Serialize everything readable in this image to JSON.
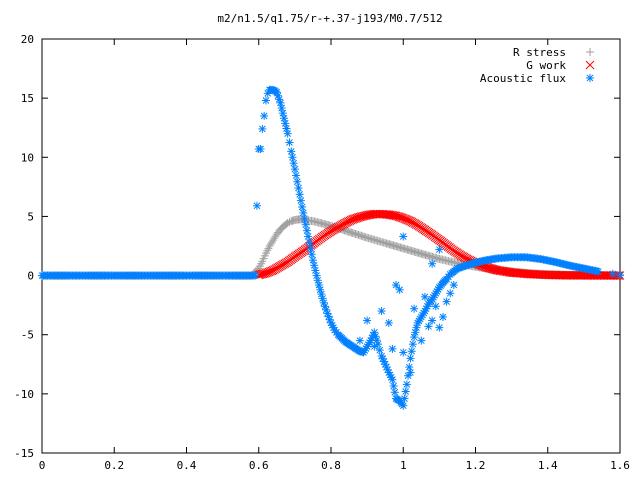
{
  "chart_data": {
    "type": "scatter",
    "title": "m2/n1.5/q1.75/r-+.37-j193/M0.7/512",
    "xlabel": "",
    "ylabel": "",
    "xlim": [
      0,
      1.6
    ],
    "ylim": [
      -15,
      20
    ],
    "x_ticks": [
      0,
      0.2,
      0.4,
      0.6,
      0.8,
      1,
      1.2,
      1.4,
      1.6
    ],
    "x_tick_labels": [
      "0",
      "0.2",
      "0.4",
      "0.6",
      "0.8",
      "1",
      "1.2",
      "1.4",
      "1.6"
    ],
    "y_ticks": [
      -15,
      -10,
      -5,
      0,
      5,
      10,
      15,
      20
    ],
    "y_tick_labels": [
      "-15",
      "-10",
      "-5",
      "0",
      "5",
      "10",
      "15",
      "20"
    ],
    "grid": false,
    "legend_position": "top-right",
    "series": [
      {
        "name": "R stress",
        "marker": "plus",
        "color": "#a0a0a0",
        "points": [
          [
            0.0,
            0
          ],
          [
            0.1,
            0
          ],
          [
            0.2,
            0
          ],
          [
            0.3,
            0
          ],
          [
            0.4,
            0
          ],
          [
            0.5,
            0
          ],
          [
            0.58,
            0
          ],
          [
            0.6,
            0.6
          ],
          [
            0.61,
            1.2
          ],
          [
            0.62,
            1.9
          ],
          [
            0.63,
            2.5
          ],
          [
            0.64,
            3.0
          ],
          [
            0.65,
            3.5
          ],
          [
            0.66,
            3.9
          ],
          [
            0.67,
            4.2
          ],
          [
            0.68,
            4.45
          ],
          [
            0.69,
            4.6
          ],
          [
            0.7,
            4.7
          ],
          [
            0.71,
            4.75
          ],
          [
            0.72,
            4.75
          ],
          [
            0.73,
            4.7
          ],
          [
            0.75,
            4.6
          ],
          [
            0.77,
            4.45
          ],
          [
            0.8,
            4.2
          ],
          [
            0.83,
            3.9
          ],
          [
            0.86,
            3.6
          ],
          [
            0.9,
            3.2
          ],
          [
            0.95,
            2.75
          ],
          [
            1.0,
            2.3
          ],
          [
            1.05,
            1.85
          ],
          [
            1.1,
            1.4
          ],
          [
            1.15,
            1.05
          ],
          [
            1.2,
            0.75
          ],
          [
            1.25,
            0.5
          ],
          [
            1.3,
            0.35
          ],
          [
            1.35,
            0.2
          ],
          [
            1.4,
            0.12
          ],
          [
            1.45,
            0.07
          ],
          [
            1.5,
            0.04
          ],
          [
            1.55,
            0.02
          ],
          [
            1.6,
            0.0
          ]
        ]
      },
      {
        "name": "G work",
        "marker": "cross",
        "color": "#ff0000",
        "points": [
          [
            0.6,
            0.05
          ],
          [
            0.62,
            0.2
          ],
          [
            0.64,
            0.45
          ],
          [
            0.66,
            0.8
          ],
          [
            0.68,
            1.15
          ],
          [
            0.7,
            1.6
          ],
          [
            0.72,
            2.0
          ],
          [
            0.74,
            2.45
          ],
          [
            0.76,
            2.9
          ],
          [
            0.78,
            3.35
          ],
          [
            0.8,
            3.75
          ],
          [
            0.82,
            4.1
          ],
          [
            0.84,
            4.45
          ],
          [
            0.86,
            4.75
          ],
          [
            0.88,
            4.95
          ],
          [
            0.9,
            5.1
          ],
          [
            0.92,
            5.2
          ],
          [
            0.94,
            5.2
          ],
          [
            0.96,
            5.15
          ],
          [
            0.98,
            5.05
          ],
          [
            1.0,
            4.85
          ],
          [
            1.02,
            4.6
          ],
          [
            1.04,
            4.25
          ],
          [
            1.06,
            3.85
          ],
          [
            1.08,
            3.45
          ],
          [
            1.1,
            3.0
          ],
          [
            1.12,
            2.55
          ],
          [
            1.14,
            2.1
          ],
          [
            1.16,
            1.7
          ],
          [
            1.18,
            1.35
          ],
          [
            1.2,
            1.05
          ],
          [
            1.23,
            0.7
          ],
          [
            1.26,
            0.45
          ],
          [
            1.3,
            0.25
          ],
          [
            1.35,
            0.12
          ],
          [
            1.4,
            0.05
          ],
          [
            1.45,
            0.02
          ],
          [
            1.5,
            0.01
          ],
          [
            1.6,
            0.0
          ]
        ]
      },
      {
        "name": "Acoustic flux",
        "marker": "star",
        "color": "#0080ff",
        "points": [
          [
            0.0,
            0
          ],
          [
            0.05,
            0
          ],
          [
            0.1,
            0
          ],
          [
            0.15,
            0
          ],
          [
            0.2,
            0
          ],
          [
            0.25,
            0
          ],
          [
            0.3,
            0
          ],
          [
            0.35,
            0
          ],
          [
            0.4,
            0
          ],
          [
            0.45,
            0
          ],
          [
            0.5,
            0
          ],
          [
            0.55,
            0
          ],
          [
            0.59,
            0
          ],
          [
            0.595,
            5.9
          ],
          [
            0.6,
            10.7
          ],
          [
            0.605,
            10.7
          ],
          [
            0.61,
            12.4
          ],
          [
            0.615,
            13.5
          ],
          [
            0.62,
            14.8
          ],
          [
            0.625,
            15.4
          ],
          [
            0.63,
            15.7
          ],
          [
            0.64,
            15.7
          ],
          [
            0.65,
            15.5
          ],
          [
            0.66,
            14.6
          ],
          [
            0.67,
            13.3
          ],
          [
            0.68,
            12.0
          ],
          [
            0.69,
            10.5
          ],
          [
            0.7,
            9.0
          ],
          [
            0.71,
            7.4
          ],
          [
            0.72,
            5.8
          ],
          [
            0.73,
            4.3
          ],
          [
            0.74,
            2.8
          ],
          [
            0.75,
            1.3
          ],
          [
            0.76,
            0.0
          ],
          [
            0.77,
            -1.2
          ],
          [
            0.78,
            -2.3
          ],
          [
            0.79,
            -3.2
          ],
          [
            0.8,
            -4.0
          ],
          [
            0.81,
            -4.6
          ],
          [
            0.82,
            -5.0
          ],
          [
            0.83,
            -5.3
          ],
          [
            0.84,
            -5.6
          ],
          [
            0.85,
            -5.8
          ],
          [
            0.86,
            -6.0
          ],
          [
            0.87,
            -6.2
          ],
          [
            0.88,
            -6.4
          ],
          [
            0.89,
            -6.5
          ],
          [
            0.9,
            -6.0
          ],
          [
            0.91,
            -5.5
          ],
          [
            0.92,
            -4.8
          ],
          [
            0.93,
            -5.8
          ],
          [
            0.94,
            -6.8
          ],
          [
            0.95,
            -7.5
          ],
          [
            0.96,
            -8.2
          ],
          [
            0.97,
            -8.8
          ],
          [
            0.98,
            -10.4
          ],
          [
            0.99,
            -10.6
          ],
          [
            1.0,
            -11.0
          ],
          [
            1.01,
            -9.2
          ],
          [
            1.02,
            -7.0
          ],
          [
            1.03,
            -5.2
          ],
          [
            1.04,
            -4.0
          ],
          [
            1.05,
            -3.5
          ],
          [
            1.06,
            -3.0
          ],
          [
            1.07,
            -2.4
          ],
          [
            1.08,
            -2.0
          ],
          [
            1.09,
            -1.5
          ],
          [
            1.1,
            -1.0
          ],
          [
            1.11,
            -0.6
          ],
          [
            1.12,
            -0.3
          ],
          [
            1.13,
            0.1
          ],
          [
            1.15,
            0.6
          ],
          [
            1.18,
            0.9
          ],
          [
            1.2,
            1.1
          ],
          [
            1.23,
            1.3
          ],
          [
            1.26,
            1.45
          ],
          [
            1.3,
            1.55
          ],
          [
            1.34,
            1.55
          ],
          [
            1.38,
            1.4
          ],
          [
            1.42,
            1.15
          ],
          [
            1.46,
            0.85
          ],
          [
            1.5,
            0.6
          ],
          [
            1.54,
            0.35
          ],
          [
            1.58,
            0.15
          ],
          [
            1.6,
            0.05
          ],
          [
            0.99,
            -1.2
          ],
          [
            1.0,
            3.3
          ],
          [
            0.98,
            -0.8
          ],
          [
            1.05,
            -5.5
          ],
          [
            1.07,
            -4.3
          ],
          [
            1.09,
            -2.6
          ],
          [
            1.11,
            -3.5
          ],
          [
            1.13,
            -1.5
          ],
          [
            1.03,
            -2.8
          ],
          [
            1.06,
            -1.8
          ],
          [
            0.96,
            -4.0
          ],
          [
            0.94,
            -3.0
          ],
          [
            0.97,
            -6.2
          ],
          [
            1.0,
            -6.5
          ],
          [
            1.02,
            -8.2
          ],
          [
            1.14,
            -0.8
          ],
          [
            1.1,
            -4.4
          ],
          [
            1.08,
            -3.8
          ],
          [
            1.12,
            -2.2
          ],
          [
            0.9,
            -3.8
          ],
          [
            0.92,
            -6.0
          ],
          [
            0.88,
            -5.5
          ],
          [
            1.1,
            2.2
          ],
          [
            1.08,
            1.0
          ]
        ]
      }
    ]
  }
}
